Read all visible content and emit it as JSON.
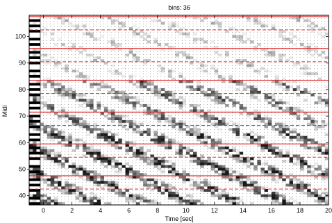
{
  "chart_data": {
    "type": "heatmap",
    "subtype": "piano-roll spectrogram",
    "title": "bins: 36",
    "xlabel": "Time [sec]",
    "ylabel": "Midi",
    "xlim": [
      -1.0,
      20.0
    ],
    "ylim": [
      36.5,
      108.0
    ],
    "x_ticks": [
      0,
      2,
      4,
      6,
      8,
      10,
      12,
      14,
      16,
      18,
      20
    ],
    "y_ticks": [
      40,
      50,
      60,
      70,
      80,
      90,
      100
    ],
    "colormap": "gray_r",
    "solid_red_lines_midi": [
      47.5,
      59.5,
      71.5,
      83.5,
      95.5,
      107.5
    ],
    "dashed_red_lines_midi": [
      42.5,
      54.5,
      66.5,
      78.5,
      90.5,
      102.5
    ],
    "onset_grid": "dotted",
    "keyboard_on_left": true,
    "colors": {
      "background": "#ffffff",
      "red_lines": "#e03030",
      "intensity": "#000000",
      "keys_black": "#000000",
      "keys_white": "#ffffff"
    }
  }
}
